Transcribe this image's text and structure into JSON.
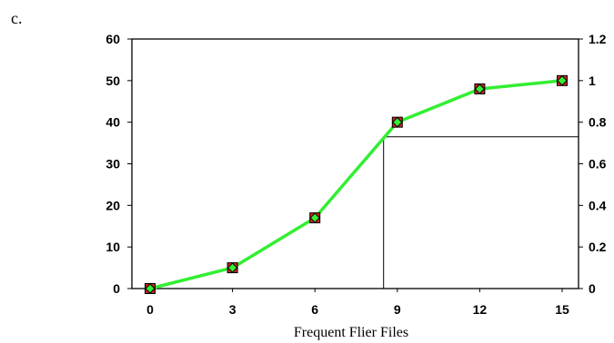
{
  "panel_label": "c.",
  "chart_data": {
    "type": "line",
    "title": "",
    "xlabel": "Frequent Flier Files",
    "ylabel": "",
    "x_ticks": [
      "0",
      "3",
      "6",
      "9",
      "12",
      "15"
    ],
    "y_ticks": [
      "0",
      "10",
      "20",
      "30",
      "40",
      "50",
      "60"
    ],
    "y2_ticks": [
      "0",
      "0.2",
      "0.4",
      "0.6",
      "0.8",
      "1",
      "1.2"
    ],
    "xlim": [
      0,
      15
    ],
    "ylim": [
      0,
      60
    ],
    "y2lim": [
      0,
      1.2
    ],
    "grid": false,
    "legend": "none",
    "series": [
      {
        "marker": "square",
        "color": "#cc2222",
        "x": [
          0,
          3,
          6,
          9,
          12,
          15
        ],
        "y": [
          0,
          5,
          17,
          40,
          48,
          50
        ]
      },
      {
        "marker": "diamond",
        "color": "#33ee33",
        "x": [
          0,
          3,
          6,
          9,
          12,
          15
        ],
        "y": [
          0,
          5,
          17,
          40,
          48,
          50
        ]
      }
    ],
    "reference_lines": {
      "x": 8.5,
      "y": 36.5
    }
  },
  "colors": {
    "line": "#33ee33",
    "square_marker": "#cc2222",
    "diamond_marker": "#33ee33",
    "axis": "#000000"
  }
}
